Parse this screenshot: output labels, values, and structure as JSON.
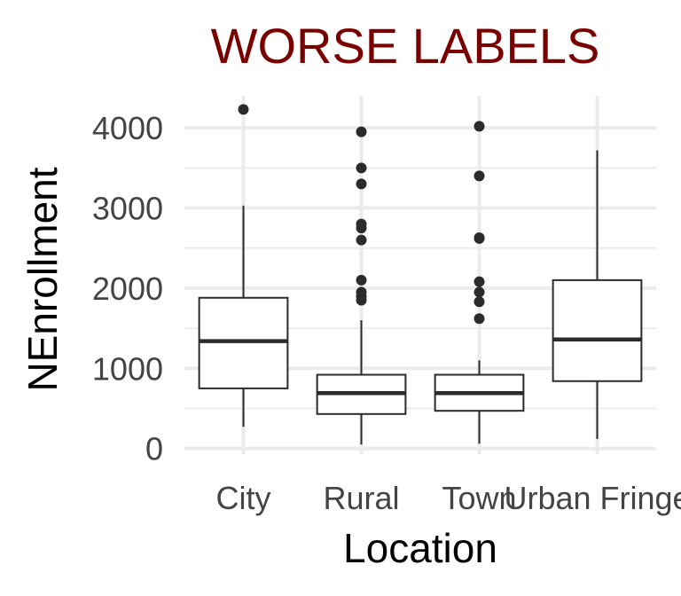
{
  "chart_data": {
    "type": "boxplot",
    "title": "WORSE LABELS",
    "xlabel": "Location",
    "ylabel": "NEnrollment",
    "categories": [
      "City",
      "Rural",
      "Town",
      "Urban Fringe"
    ],
    "ylim": [
      -70,
      4400
    ],
    "yticks": [
      0,
      1000,
      2000,
      3000,
      4000
    ],
    "grid": true,
    "boxes": [
      {
        "category": "City",
        "whisker_low": 270,
        "q1": 750,
        "median": 1340,
        "q3": 1880,
        "whisker_high": 3030,
        "outliers": [
          4230
        ]
      },
      {
        "category": "Rural",
        "whisker_low": 50,
        "q1": 430,
        "median": 690,
        "q3": 920,
        "whisker_high": 1600,
        "outliers": [
          1850,
          1900,
          1950,
          2100,
          2600,
          2750,
          2800,
          3300,
          3500,
          3950
        ]
      },
      {
        "category": "Town",
        "whisker_low": 60,
        "q1": 470,
        "median": 690,
        "q3": 920,
        "whisker_high": 1100,
        "outliers": [
          1620,
          1830,
          1950,
          2080,
          2620,
          2630,
          3400,
          4020
        ]
      },
      {
        "category": "Urban Fringe",
        "whisker_low": 120,
        "q1": 840,
        "median": 1360,
        "q3": 2100,
        "whisker_high": 3720,
        "outliers": []
      }
    ],
    "colors": {
      "title": "#7a0000",
      "box_line": "#2b2b2b",
      "grid": "#ebebeb",
      "outlier": "#2b2b2b"
    }
  }
}
